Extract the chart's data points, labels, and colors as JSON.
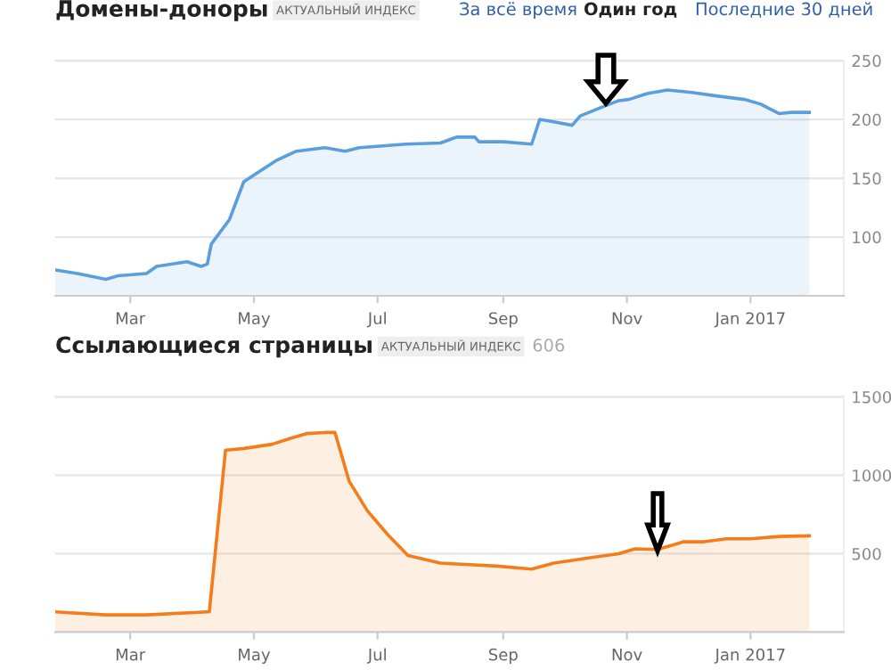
{
  "chart_data": [
    {
      "type": "area",
      "title": "Домены-доноры",
      "subtitle": "АКТУАЛЬНЫЙ ИНДЕКС",
      "annotations": [
        "За всё время",
        "Один год",
        "Последние 30 дней"
      ],
      "x": [
        "2016-01-24",
        "2016-02-04",
        "2016-02-18",
        "2016-02-24",
        "2016-03-09",
        "2016-03-14",
        "2016-03-29",
        "2016-04-05",
        "2016-04-08",
        "2016-04-10",
        "2016-04-19",
        "2016-04-26",
        "2016-05-03",
        "2016-05-12",
        "2016-05-22",
        "2016-06-05",
        "2016-06-15",
        "2016-06-22",
        "2016-07-15",
        "2016-08-01",
        "2016-08-09",
        "2016-08-18",
        "2016-08-20",
        "2016-09-01",
        "2016-09-15",
        "2016-09-19",
        "2016-09-26",
        "2016-10-05",
        "2016-10-09",
        "2016-10-19",
        "2016-10-28",
        "2016-11-02",
        "2016-11-11",
        "2016-11-21",
        "2016-12-03",
        "2016-12-15",
        "2016-12-29",
        "2017-01-06",
        "2017-01-15",
        "2017-01-21",
        "2017-01-30"
      ],
      "series": [
        {
          "color": "#5a9fdc",
          "values": [
            72,
            69,
            64,
            67,
            69,
            75,
            79,
            75,
            77,
            94,
            115,
            147,
            155,
            165,
            173,
            176,
            173,
            176,
            179,
            180,
            185,
            185,
            181,
            181,
            179,
            200,
            198,
            195,
            203,
            210,
            216,
            217,
            222,
            225,
            223,
            220,
            217,
            213,
            205,
            206,
            206
          ]
        }
      ],
      "xlim": [
        "2016-01-24",
        "2017-02-16"
      ],
      "xticks": [
        {
          "value": "2016-03-01",
          "label": "Mar"
        },
        {
          "value": "2016-05-01",
          "label": "May"
        },
        {
          "value": "2016-07-01",
          "label": "Jul"
        },
        {
          "value": "2016-09-01",
          "label": "Sep"
        },
        {
          "value": "2016-11-01",
          "label": "Nov"
        },
        {
          "value": "2017-01-01",
          "label": "Jan 2017"
        }
      ],
      "ylim": [
        50,
        250
      ],
      "yticks": [
        {
          "value": 50,
          "label": null
        },
        100,
        150,
        200,
        250
      ],
      "grid": "y",
      "legend": false,
      "line_style": "solid"
    },
    {
      "type": "area",
      "title": "Ссылающиеся страницы",
      "subtitle": "АКТУАЛЬНЫЙ ИНДЕКС",
      "annotations": [
        "606"
      ],
      "x": [
        "2016-01-24",
        "2016-02-18",
        "2016-03-09",
        "2016-04-08",
        "2016-04-09",
        "2016-04-17",
        "2016-04-26",
        "2016-05-10",
        "2016-05-19",
        "2016-05-27",
        "2016-06-05",
        "2016-06-10",
        "2016-06-17",
        "2016-06-26",
        "2016-07-06",
        "2016-07-16",
        "2016-08-01",
        "2016-08-29",
        "2016-09-15",
        "2016-09-26",
        "2016-10-16",
        "2016-10-28",
        "2016-11-05",
        "2016-11-16",
        "2016-11-29",
        "2016-12-09",
        "2016-12-20",
        "2017-01-01",
        "2017-01-15",
        "2017-01-30"
      ],
      "series": [
        {
          "color": "#f57c1a",
          "values": [
            129,
            110,
            110,
            129,
            129,
            1160,
            1171,
            1198,
            1236,
            1266,
            1273,
            1273,
            962,
            773,
            622,
            489,
            440,
            421,
            402,
            440,
            478,
            500,
            531,
            527,
            576,
            576,
            595,
            595,
            610,
            614
          ]
        }
      ],
      "xlim": [
        "2016-01-24",
        "2017-02-16"
      ],
      "xticks": [
        {
          "value": "2016-03-01",
          "label": "Mar"
        },
        {
          "value": "2016-05-01",
          "label": "May"
        },
        {
          "value": "2016-07-01",
          "label": "Jul"
        },
        {
          "value": "2016-09-01",
          "label": "Sep"
        },
        {
          "value": "2016-11-01",
          "label": "Nov"
        },
        {
          "value": "2017-01-01",
          "label": "Jan 2017"
        }
      ],
      "ylim": [
        0,
        1500
      ],
      "yticks": [
        {
          "value": 0,
          "label": null
        },
        500,
        1000,
        1500
      ],
      "grid": "y",
      "legend": false,
      "line_style": "solid"
    }
  ]
}
